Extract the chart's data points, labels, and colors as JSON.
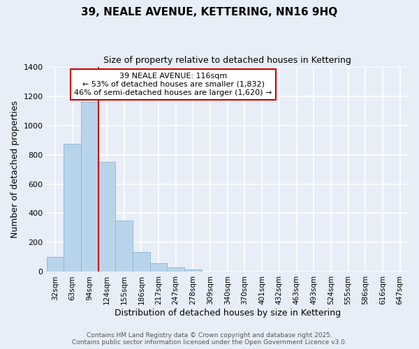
{
  "title": "39, NEALE AVENUE, KETTERING, NN16 9HQ",
  "subtitle": "Size of property relative to detached houses in Kettering",
  "xlabel": "Distribution of detached houses by size in Kettering",
  "ylabel": "Number of detached properties",
  "bar_labels": [
    "32sqm",
    "63sqm",
    "94sqm",
    "124sqm",
    "155sqm",
    "186sqm",
    "217sqm",
    "247sqm",
    "278sqm",
    "309sqm",
    "340sqm",
    "370sqm",
    "401sqm",
    "432sqm",
    "463sqm",
    "493sqm",
    "524sqm",
    "555sqm",
    "586sqm",
    "616sqm",
    "647sqm"
  ],
  "bar_values": [
    100,
    875,
    1160,
    750,
    350,
    135,
    60,
    30,
    15,
    0,
    0,
    0,
    0,
    0,
    0,
    0,
    0,
    0,
    0,
    0,
    0
  ],
  "bar_color": "#b8d4ea",
  "bar_edge_color": "#8ab4d4",
  "ylim": [
    0,
    1400
  ],
  "yticks": [
    0,
    200,
    400,
    600,
    800,
    1000,
    1200,
    1400
  ],
  "vline_color": "#cc0000",
  "annotation_title": "39 NEALE AVENUE: 116sqm",
  "annotation_line1": "← 53% of detached houses are smaller (1,832)",
  "annotation_line2": "46% of semi-detached houses are larger (1,620) →",
  "annotation_box_color": "#cc0000",
  "background_color": "#e8eef8",
  "plot_bg_color": "#e8eef8",
  "grid_color": "#ffffff",
  "footer1": "Contains HM Land Registry data © Crown copyright and database right 2025.",
  "footer2": "Contains public sector information licensed under the Open Government Licence v3.0."
}
